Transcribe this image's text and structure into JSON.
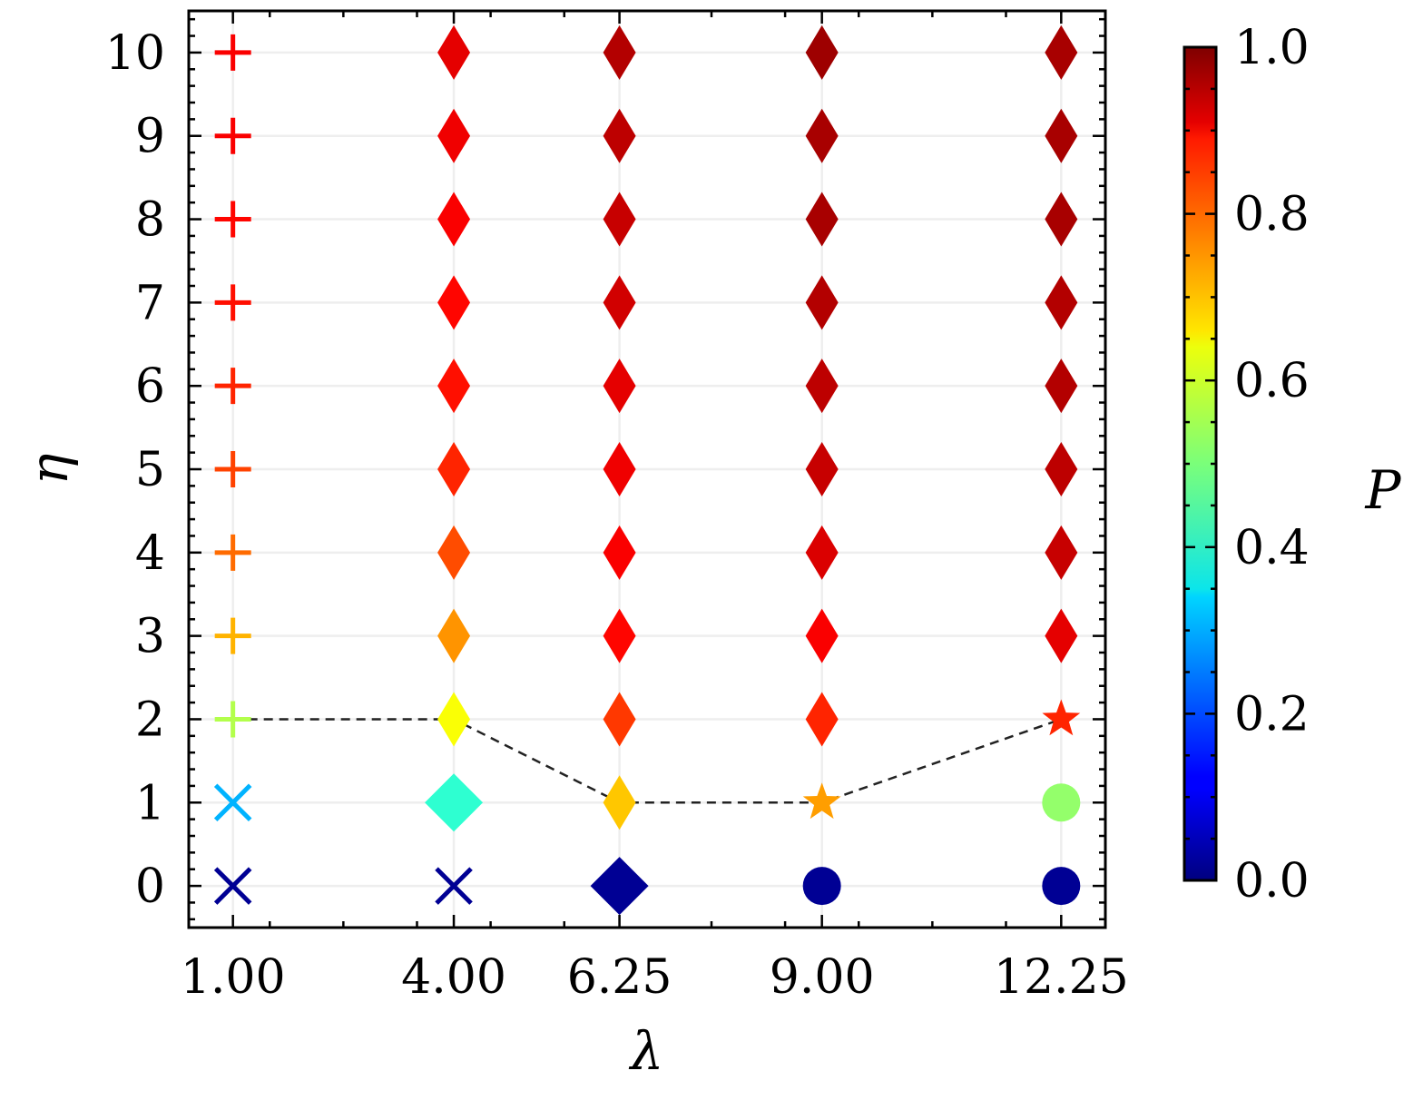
{
  "chart_data": {
    "type": "scatter",
    "xlabel": "λ",
    "ylabel": "η",
    "colorbar_label": "P",
    "colormap": "jet",
    "x_ticks": [
      1.0,
      4.0,
      6.25,
      9.0,
      12.25
    ],
    "x_tick_labels": [
      "1.00",
      "4.00",
      "6.25",
      "9.00",
      "12.25"
    ],
    "y_ticks": [
      0,
      1,
      2,
      3,
      4,
      5,
      6,
      7,
      8,
      9,
      10
    ],
    "y_tick_labels": [
      "0",
      "1",
      "2",
      "3",
      "4",
      "5",
      "6",
      "7",
      "8",
      "9",
      "10"
    ],
    "xlim": [
      0.4,
      12.85
    ],
    "ylim": [
      -0.5,
      10.5
    ],
    "colorbar_range": [
      0.0,
      1.0
    ],
    "colorbar_ticks": [
      0.0,
      0.2,
      0.4,
      0.6,
      0.8,
      1.0
    ],
    "colorbar_tick_labels": [
      "0.0",
      "0.2",
      "0.4",
      "0.6",
      "0.8",
      "1.0"
    ],
    "grid": true,
    "series": [
      {
        "x": 1.0,
        "marker": "x",
        "eta": [
          0,
          1
        ],
        "P": [
          0.02,
          0.3
        ]
      },
      {
        "x": 1.0,
        "marker": "plus",
        "eta": [
          2,
          3,
          4,
          5,
          6,
          7,
          8,
          9,
          10
        ],
        "P": [
          0.55,
          0.7,
          0.77,
          0.81,
          0.84,
          0.86,
          0.87,
          0.88,
          0.88
        ]
      },
      {
        "x": 4.0,
        "marker": "x",
        "eta": [
          0
        ],
        "P": [
          0.02
        ]
      },
      {
        "x": 4.0,
        "marker": "big-diamond",
        "eta": [
          1
        ],
        "P": [
          0.42
        ]
      },
      {
        "x": 4.0,
        "marker": "thin-diamond",
        "eta": [
          2,
          3,
          4,
          5,
          6,
          7,
          8,
          9,
          10
        ],
        "P": [
          0.62,
          0.73,
          0.8,
          0.84,
          0.86,
          0.87,
          0.88,
          0.89,
          0.9
        ]
      },
      {
        "x": 6.25,
        "marker": "big-diamond",
        "eta": [
          0
        ],
        "P": [
          0.02
        ]
      },
      {
        "x": 6.25,
        "marker": "thin-diamond",
        "eta": [
          1,
          2,
          3,
          4,
          5,
          6,
          7,
          8,
          9,
          10
        ],
        "P": [
          0.68,
          0.82,
          0.87,
          0.88,
          0.89,
          0.9,
          0.92,
          0.93,
          0.94,
          0.95
        ]
      },
      {
        "x": 9.0,
        "marker": "circle",
        "eta": [
          0
        ],
        "P": [
          0.02
        ]
      },
      {
        "x": 9.0,
        "marker": "star",
        "eta": [
          1
        ],
        "P": [
          0.72
        ]
      },
      {
        "x": 9.0,
        "marker": "thin-diamond",
        "eta": [
          2,
          3,
          4,
          5,
          6,
          7,
          8,
          9,
          10
        ],
        "P": [
          0.84,
          0.88,
          0.91,
          0.93,
          0.94,
          0.95,
          0.96,
          0.96,
          0.97
        ]
      },
      {
        "x": 12.25,
        "marker": "circle",
        "eta": [
          0,
          1
        ],
        "P": [
          0.02,
          0.52
        ]
      },
      {
        "x": 12.25,
        "marker": "star",
        "eta": [
          2
        ],
        "P": [
          0.84
        ]
      },
      {
        "x": 12.25,
        "marker": "thin-diamond",
        "eta": [
          3,
          4,
          5,
          6,
          7,
          8,
          9,
          10
        ],
        "P": [
          0.9,
          0.93,
          0.94,
          0.95,
          0.95,
          0.96,
          0.96,
          0.96
        ]
      }
    ],
    "boundary_line": {
      "style": "dashed",
      "x": [
        1.0,
        4.0,
        6.25,
        9.0,
        12.25
      ],
      "y": [
        2,
        2,
        1,
        1,
        2
      ]
    }
  }
}
